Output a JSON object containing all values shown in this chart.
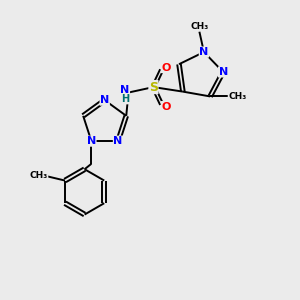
{
  "bg_color": "#EBEBEB",
  "bond_color": "#000000",
  "N_color": "#0000FF",
  "S_color": "#B8B800",
  "O_color": "#FF0000",
  "H_color": "#007070",
  "font_size": 8.0,
  "lw": 1.4,
  "doff": 0.04,
  "figsize": [
    3.0,
    3.0
  ],
  "dpi": 100,
  "xlim": [
    0.5,
    6.5
  ],
  "ylim": [
    1.0,
    7.5
  ]
}
